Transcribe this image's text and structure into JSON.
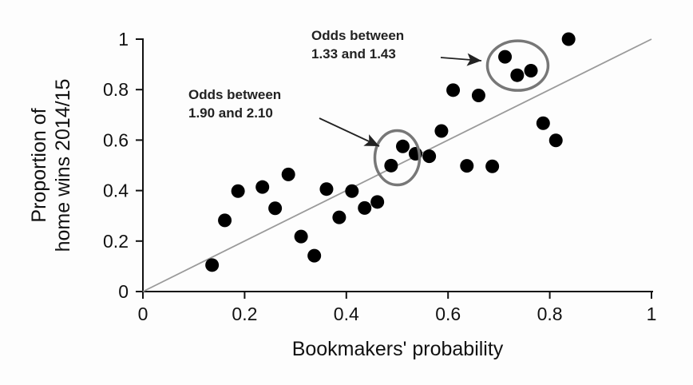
{
  "chart_data": {
    "type": "scatter",
    "title": "",
    "xlabel": "Bookmakers' probability",
    "ylabel": [
      "Proportion of",
      "home wins 2014/15"
    ],
    "xlim": [
      0,
      1
    ],
    "ylim": [
      0,
      1
    ],
    "xticks": [
      "0",
      "0.2",
      "0.4",
      "0.6",
      "0.8",
      "1"
    ],
    "yticks": [
      "0",
      "0.2",
      "0.4",
      "0.6",
      "0.8",
      "1"
    ],
    "grid": false,
    "reference_line": {
      "from": [
        0,
        0
      ],
      "to": [
        1,
        1
      ],
      "color": "#9a9a9a"
    },
    "point_color": "#000000",
    "points": [
      [
        0.136,
        0.105
      ],
      [
        0.161,
        0.282
      ],
      [
        0.187,
        0.398
      ],
      [
        0.235,
        0.414
      ],
      [
        0.26,
        0.33
      ],
      [
        0.286,
        0.464
      ],
      [
        0.311,
        0.218
      ],
      [
        0.337,
        0.142
      ],
      [
        0.361,
        0.406
      ],
      [
        0.386,
        0.294
      ],
      [
        0.411,
        0.398
      ],
      [
        0.436,
        0.331
      ],
      [
        0.461,
        0.355
      ],
      [
        0.488,
        0.499
      ],
      [
        0.511,
        0.575
      ],
      [
        0.536,
        0.546
      ],
      [
        0.563,
        0.536
      ],
      [
        0.587,
        0.636
      ],
      [
        0.61,
        0.798
      ],
      [
        0.637,
        0.498
      ],
      [
        0.66,
        0.777
      ],
      [
        0.687,
        0.496
      ],
      [
        0.712,
        0.93
      ],
      [
        0.736,
        0.857
      ],
      [
        0.763,
        0.875
      ],
      [
        0.787,
        0.667
      ],
      [
        0.812,
        0.599
      ],
      [
        0.837,
        1.0
      ]
    ],
    "annotations": [
      {
        "lines": [
          "Odds between",
          "1.90 and 2.10"
        ],
        "circle_center": [
          0.5,
          0.53
        ],
        "circle_color": "#777777"
      },
      {
        "lines": [
          "Odds between",
          "1.33 and 1.43"
        ],
        "circle_center": [
          0.737,
          0.895
        ],
        "circle_color": "#777777"
      }
    ]
  }
}
